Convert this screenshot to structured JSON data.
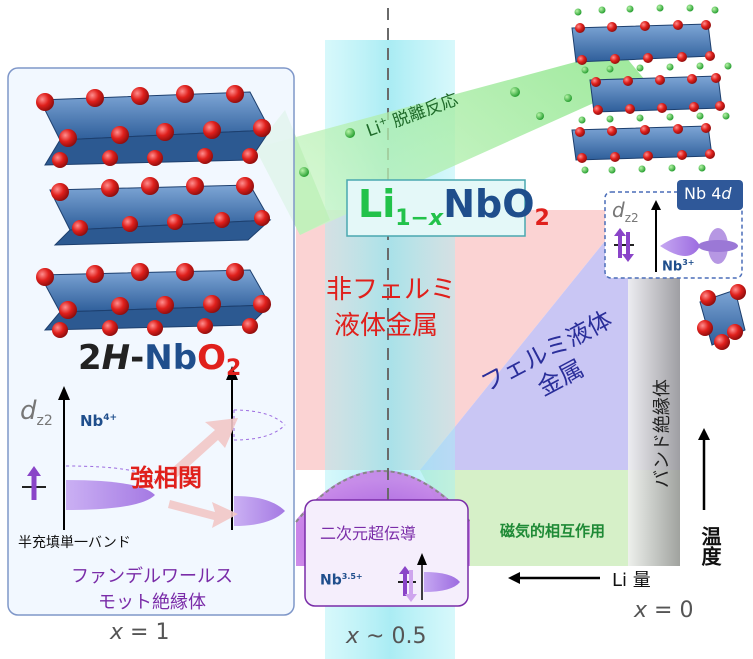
{
  "compound": {
    "base": "Li",
    "sub1": "1−",
    "subx": "x",
    "mid": "NbO",
    "sub2": "2"
  },
  "left_title": {
    "num": "2",
    "h": "H",
    "dash": "-",
    "nb": "Nb",
    "o": "O",
    "sub": "2"
  },
  "reaction_arrow": {
    "li": "Li",
    "sup": "+",
    "label": " 脱離反応"
  },
  "regions": {
    "non_fermi": [
      "非フェルミ",
      "液体金属"
    ],
    "fermi": [
      "フェルミ液体",
      "金属"
    ],
    "band_insulator": "バンド絶縁体",
    "superconductivity": "二次元超伝導",
    "magnetic": "磁気的相互作用"
  },
  "strong_correlation": "強相関",
  "half_filled_band": "半充填単一バンド",
  "vdw_mott": [
    "ファンデルワールス",
    "モット絶縁体"
  ],
  "orbital": {
    "d": "d",
    "sub": "z2"
  },
  "ions": {
    "nb4": "Nb",
    "nb4_sup": "4+",
    "nb3": "Nb",
    "nb3_sup": "3+",
    "nb35": "Nb",
    "nb35_sup": "3.5+"
  },
  "nb4d": {
    "nb": "Nb 4",
    "d": "d"
  },
  "axes": {
    "li_amount": "Li 量",
    "temperature": "温度"
  },
  "x_labels": [
    {
      "x": "x",
      "eq": " = 1"
    },
    {
      "x": "x",
      "eq": " ~ 0.5"
    },
    {
      "x": "x",
      "eq": " = 0"
    }
  ],
  "colors": {
    "blue": "#1f4e8c",
    "red": "#e0201c",
    "purple": "#7a2ca8",
    "green": "#22a14a",
    "dark_blue": "#2a2e9a"
  }
}
